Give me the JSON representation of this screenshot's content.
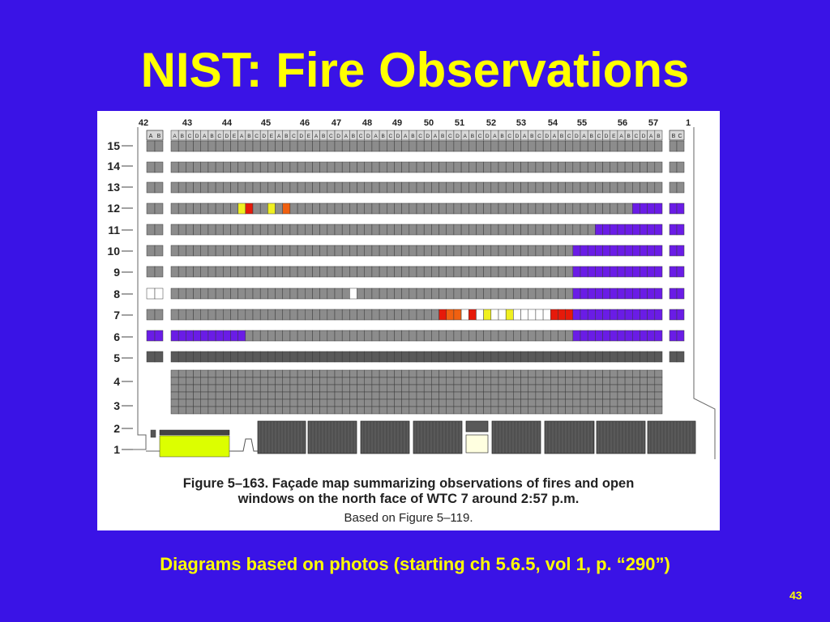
{
  "slide": {
    "title": "NIST: Fire Observations",
    "subtitle": "Diagrams based on photos (starting ch 5.6.5, vol 1, p. “290”)",
    "page_number": "43"
  },
  "figure": {
    "caption_line1": "Figure 5–163.  Façade map summarizing observations of fires and open",
    "caption_line2": "windows on the north face of WTC 7 around 2:57 p.m.",
    "caption_line3": "Based on Figure 5–119.",
    "column_numbers": [
      "42",
      "43",
      "44",
      "45",
      "46",
      "47",
      "48",
      "49",
      "50",
      "51",
      "52",
      "53",
      "54",
      "55",
      "56",
      "57",
      "1"
    ],
    "column_letters": "ABCDABCDEABCDEABCDEABCDABCDABCDABCDABCDABCDABCDABCDABCDABCDEABCDABC",
    "floor_labels": [
      "15",
      "14",
      "13",
      "12",
      "11",
      "10",
      "9",
      "8",
      "7",
      "6",
      "5",
      "4",
      "3",
      "2",
      "1"
    ],
    "colors": {
      "slide_background": "#3a13e6",
      "title": "#ffff00",
      "window_gray": "#8c8c8c",
      "mechanical_floor": "#595959",
      "open_window": "#6a1ce6",
      "fire_red": "#e61a0a",
      "fire_orange": "#f06010",
      "fire_yellow": "#f0f020",
      "lobby_yellow": "#dcff00",
      "white_window": "#ffffff"
    }
  }
}
